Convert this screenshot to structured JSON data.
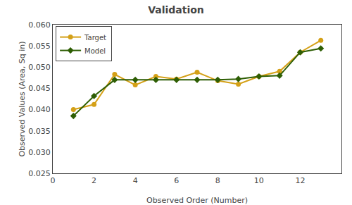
{
  "chart_data": {
    "type": "line",
    "title": "Validation",
    "x_label": "Observed Order (Number)",
    "y_label": "Observed Values (Area, Sq in)",
    "x": [
      1,
      2,
      3,
      4,
      5,
      6,
      7,
      8,
      9,
      10,
      11,
      12,
      13
    ],
    "series": [
      {
        "name": "Target",
        "color": "#D4A017",
        "marker": "circle",
        "values": [
          0.04,
          0.0412,
          0.0483,
          0.0458,
          0.0478,
          0.0472,
          0.0488,
          0.0468,
          0.046,
          0.0478,
          0.049,
          0.0535,
          0.0563
        ]
      },
      {
        "name": "Model",
        "color": "#2E5E04",
        "marker": "diamond",
        "values": [
          0.0385,
          0.0432,
          0.047,
          0.047,
          0.047,
          0.047,
          0.047,
          0.047,
          0.0472,
          0.0478,
          0.048,
          0.0535,
          0.0544
        ]
      }
    ],
    "xlim": [
      0,
      14
    ],
    "xticks": [
      0,
      2,
      4,
      6,
      8,
      10,
      12
    ],
    "ylim": [
      0.025,
      0.06
    ],
    "yticks": [
      0.025,
      {
        "value": 0.03,
        "label": "0.030"
      },
      0.035,
      {
        "value": 0.04,
        "label": "0.040"
      },
      0.045,
      {
        "value": 0.05,
        "label": "0.050"
      },
      0.055,
      {
        "value": 0.06,
        "label": "0.060"
      }
    ],
    "grid": false,
    "legend": "upper left"
  }
}
